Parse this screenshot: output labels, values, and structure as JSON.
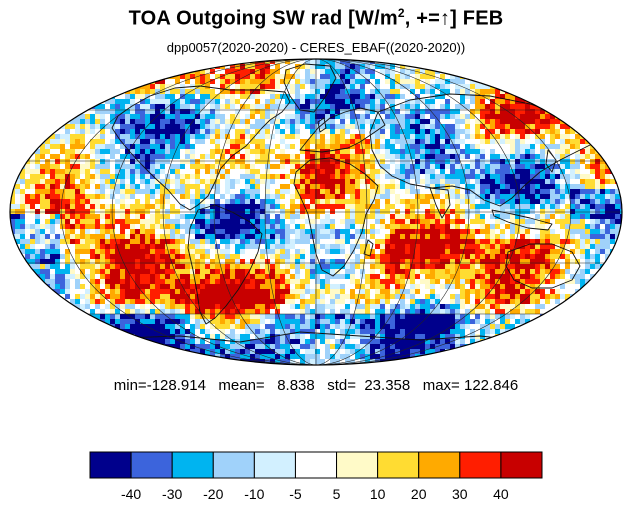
{
  "title": {
    "main": "TOA Outgoing SW rad [W/m",
    "sup": "2",
    "tail": ", +=↑] FEB"
  },
  "subtitle": "dpp0057(2020-2020) - CERES_EBAF((2020-2020))",
  "stats": {
    "text": "min=-128.914   mean=   8.838   std=  23.358   max= 122.846"
  },
  "colorbar": {
    "colors": [
      "#00008c",
      "#3c64dc",
      "#00b4f0",
      "#a0d2fa",
      "#d2f0ff",
      "#ffffff",
      "#fffac8",
      "#ffdc32",
      "#ffaa00",
      "#ff1e00",
      "#c80000"
    ],
    "tick_labels": [
      "-40",
      "-30",
      "-20",
      "-10",
      "-5",
      "5",
      "10",
      "20",
      "30",
      "40"
    ]
  },
  "map": {
    "projection": "mollweide",
    "colormap": "blue-white-red diverging",
    "coastlines": true,
    "graticule": true
  }
}
